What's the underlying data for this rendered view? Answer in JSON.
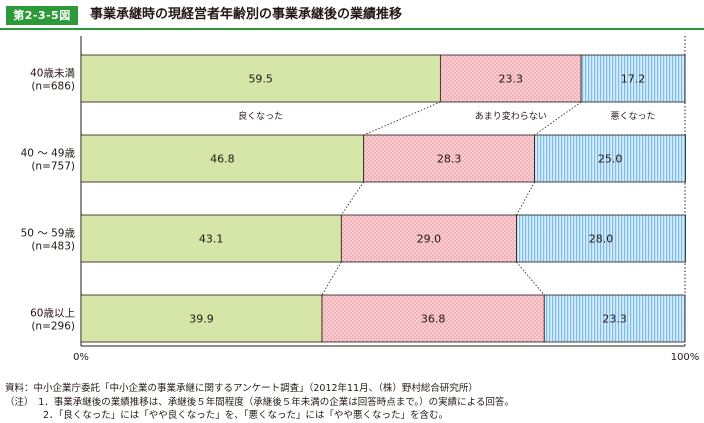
{
  "figure": {
    "number": "第2-3-5図",
    "title": "事業承継時の現経営者年齢別の事業承継後の業績推移"
  },
  "chart_data": {
    "type": "bar",
    "orientation": "horizontal-stacked-100",
    "categories": [
      "40歳未満\n(n=686)",
      "40 ～ 49歳\n(n=757)",
      "50 ～ 59歳\n(n=483)",
      "60歳以上\n(n=296)"
    ],
    "series": [
      {
        "name": "良くなった",
        "values": [
          59.5,
          46.8,
          43.1,
          39.9
        ],
        "color": "#d6e5a8",
        "pattern": "solid"
      },
      {
        "name": "あまり変わらない",
        "values": [
          23.3,
          28.3,
          29.0,
          36.8
        ],
        "color": "#f7c5ca",
        "pattern": "dots"
      },
      {
        "name": "悪くなった",
        "values": [
          17.2,
          25.0,
          28.0,
          23.3
        ],
        "color": "#b9dcf3",
        "pattern": "vertical-stripes"
      }
    ],
    "value_labels": [
      [
        "59.5",
        "46.8",
        "43.1",
        "39.9"
      ],
      [
        "23.3",
        "28.3",
        "29.0",
        "36.8"
      ],
      [
        "17.2",
        "25.0",
        "28.0",
        "23.3"
      ]
    ],
    "xlim": [
      0,
      100
    ],
    "x_tick_labels": [
      "0%",
      "100%"
    ],
    "legend_placement": "between first and second bar",
    "connector_lines": "dotted lines joining segment boundaries of adjacent bars"
  },
  "notes": {
    "source": "資料：中小企業庁委託「中小企業の事業承継に関するアンケート調査」（2012年11月、（株）野村総合研究所）",
    "note1": "（注）　1．事業承継後の業績推移は、承継後５年間程度（承継後５年未満の企業は回答時点まで。）の実績による回答。",
    "note2": "　　　　2．「良くなった」には「やや良くなった」を、「悪くなった」には「やや悪くなった」を含む。"
  }
}
